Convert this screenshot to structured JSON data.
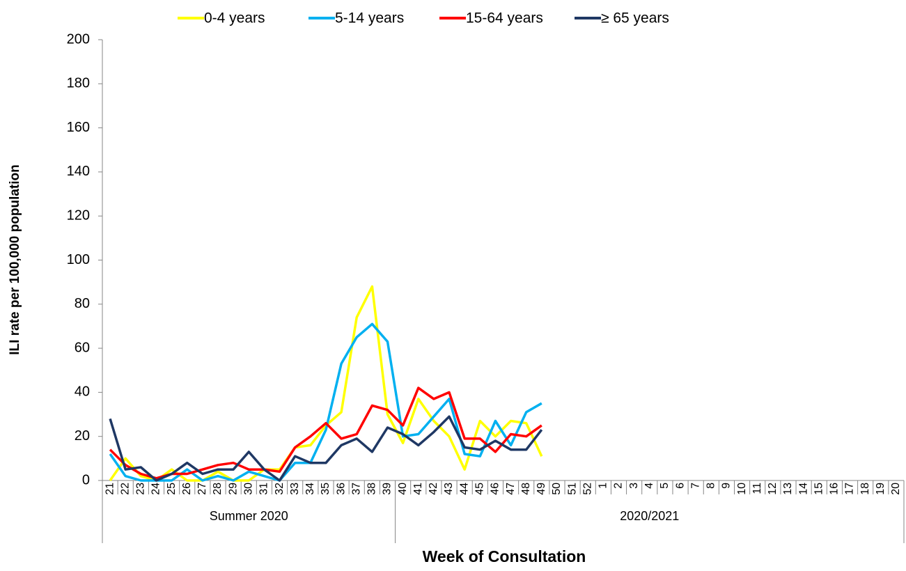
{
  "chart_data": {
    "type": "line",
    "y_label": "ILI rate per 100,000 population",
    "x_label": "Week of Consultation",
    "category_groups": [
      {
        "label": "Summer 2020",
        "categories": [
          "21",
          "22",
          "23",
          "24",
          "25",
          "26",
          "27",
          "28",
          "29",
          "30",
          "31",
          "32",
          "33",
          "34",
          "35",
          "36",
          "37",
          "38",
          "39"
        ]
      },
      {
        "label": "2020/2021",
        "categories": [
          "40",
          "41",
          "42",
          "43",
          "44",
          "45",
          "46",
          "47",
          "48",
          "49",
          "50",
          "51",
          "52",
          "1",
          "2",
          "3",
          "4",
          "5",
          "6",
          "7",
          "8",
          "9",
          "10",
          "11",
          "12",
          "13",
          "14",
          "15",
          "16",
          "17",
          "18",
          "19",
          "20"
        ]
      }
    ],
    "series": [
      {
        "name": "0-4 years",
        "color": "#ffff00",
        "values": [
          0,
          10,
          2,
          0,
          5,
          0,
          0,
          4,
          0,
          0,
          5,
          5,
          15,
          16,
          25,
          31,
          74,
          88,
          30,
          17,
          37,
          27,
          20,
          5,
          27,
          20,
          27,
          26,
          11,
          null,
          null,
          null,
          null,
          null,
          null,
          null,
          null,
          null,
          null,
          null,
          null,
          null,
          null,
          null,
          null,
          null,
          null,
          null,
          null,
          null,
          null,
          null
        ]
      },
      {
        "name": "5-14 years",
        "color": "#00b0f0",
        "values": [
          12,
          2,
          0,
          0,
          0,
          5,
          0,
          2,
          0,
          4,
          2,
          0,
          8,
          8,
          23,
          53,
          65,
          71,
          63,
          20,
          21,
          29,
          37,
          12,
          11,
          27,
          16,
          31,
          35,
          null,
          null,
          null,
          null,
          null,
          null,
          null,
          null,
          null,
          null,
          null,
          null,
          null,
          null,
          null,
          null,
          null,
          null,
          null,
          null,
          null,
          null,
          null
        ]
      },
      {
        "name": "15-64 years",
        "color": "#ff0000",
        "values": [
          14,
          7,
          3,
          1,
          3,
          3,
          5,
          7,
          8,
          5,
          5,
          4,
          15,
          20,
          26,
          19,
          21,
          34,
          32,
          25,
          42,
          37,
          40,
          19,
          19,
          13,
          21,
          20,
          25,
          null,
          null,
          null,
          null,
          null,
          null,
          null,
          null,
          null,
          null,
          null,
          null,
          null,
          null,
          null,
          null,
          null,
          null,
          null,
          null,
          null,
          null,
          null
        ]
      },
      {
        "name": "≥ 65 years",
        "color": "#1f3864",
        "values": [
          28,
          5,
          6,
          0,
          3,
          8,
          3,
          5,
          5,
          13,
          5,
          0,
          11,
          8,
          8,
          16,
          19,
          13,
          24,
          21,
          16,
          22,
          29,
          15,
          14,
          18,
          14,
          14,
          23,
          null,
          null,
          null,
          null,
          null,
          null,
          null,
          null,
          null,
          null,
          null,
          null,
          null,
          null,
          null,
          null,
          null,
          null,
          null,
          null,
          null,
          null,
          null
        ]
      }
    ],
    "ylim": [
      0,
      200
    ],
    "yticks": [
      0,
      20,
      40,
      60,
      80,
      100,
      120,
      140,
      160,
      180,
      200
    ]
  }
}
